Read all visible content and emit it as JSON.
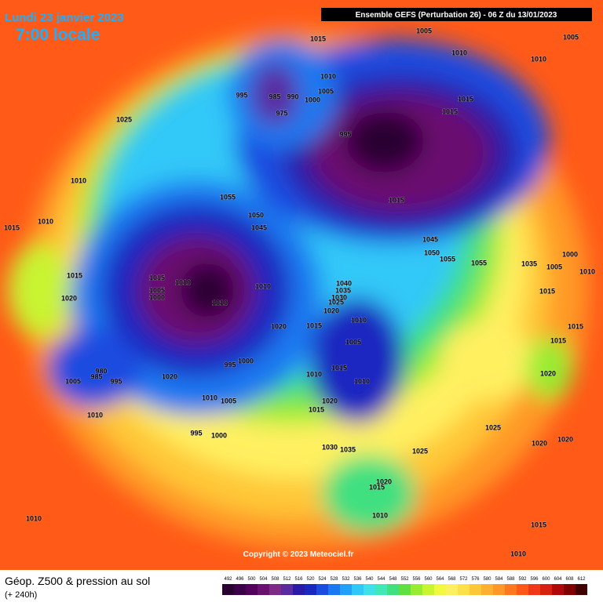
{
  "header": {
    "date": "Lundi 23 janvier 2023",
    "local_time": "7:00 locale",
    "model": "Ensemble GEFS  (Perturbation 26)  -  06 Z du 13/01/2023",
    "copyright": "Copyright © 2023 Meteociel.fr"
  },
  "footer": {
    "title": "Géop. Z500 & pression au sol",
    "lead": "(+ 240h)"
  },
  "scale": {
    "values": [
      492,
      496,
      500,
      504,
      508,
      512,
      516,
      520,
      524,
      528,
      532,
      536,
      540,
      544,
      548,
      552,
      556,
      560,
      564,
      568,
      572,
      576,
      580,
      584,
      588,
      592,
      596,
      600,
      604,
      608,
      612
    ],
    "colors": [
      "#2a0030",
      "#3c0048",
      "#52005c",
      "#6a1070",
      "#802a88",
      "#5a2aa0",
      "#2a1aa8",
      "#1a28c0",
      "#1a4ce0",
      "#1a78f0",
      "#20a0f8",
      "#30c8f8",
      "#40e0e8",
      "#40e8b8",
      "#40e080",
      "#60e040",
      "#98ec30",
      "#c8f430",
      "#f0f840",
      "#fff060",
      "#ffe048",
      "#ffc838",
      "#ffb030",
      "#ff9828",
      "#ff7820",
      "#ff5818",
      "#f03818",
      "#d82010",
      "#b00808",
      "#800000",
      "#400000"
    ]
  },
  "isobar_labels": [
    1015,
    1005,
    1005,
    1010,
    1010,
    1010,
    995,
    985,
    990,
    1000,
    1005,
    975,
    1025,
    1015,
    1015,
    995,
    1010,
    1055,
    1015,
    1050,
    1010,
    1015,
    1045,
    1045,
    1050,
    1055,
    1055,
    1035,
    1000,
    1005,
    1010,
    1015,
    1015,
    1010,
    1005,
    1000,
    1040,
    1035,
    1030,
    1025,
    1010,
    1010,
    1020,
    1015,
    1020,
    1020,
    1015,
    1010,
    1015,
    1005,
    1015,
    1000,
    995,
    980,
    985,
    995,
    1005,
    1020,
    1010,
    1015,
    1010,
    1020,
    1010,
    1005,
    1020,
    1015,
    1010,
    1025,
    995,
    1000,
    1030,
    1035,
    1025,
    1020,
    1020,
    1020,
    1015,
    1010,
    1010,
    1015,
    1010
  ]
}
